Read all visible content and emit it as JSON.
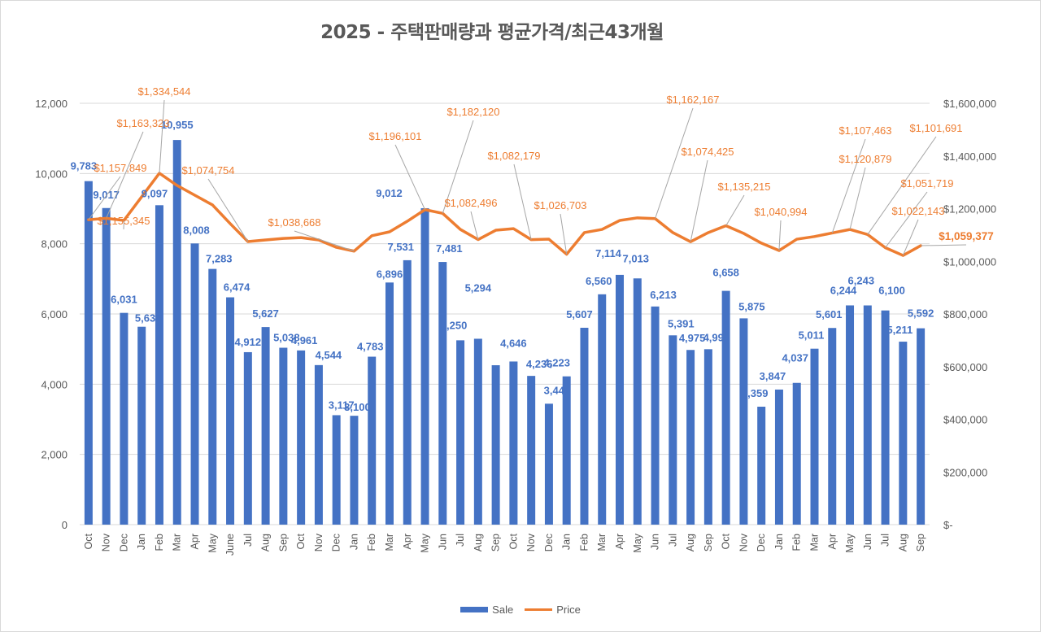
{
  "chart_data": {
    "type": "bar+line",
    "title": "2025 - 주택판매량과 평균가격/최근43개월",
    "xlabel": "",
    "ylabel_left": "",
    "ylabel_right": "",
    "ylim_left": [
      0,
      12000
    ],
    "ylim_right": [
      0,
      1600000
    ],
    "yticks_left": [
      "0",
      "2,000",
      "4,000",
      "6,000",
      "8,000",
      "10,000",
      "12,000"
    ],
    "yticks_right": [
      "$-",
      "$200,000",
      "$400,000",
      "$600,000",
      "$800,000",
      "$1,000,000",
      "$1,200,000",
      "$1,400,000",
      "$1,600,000"
    ],
    "grid": true,
    "legend_position": "bottom",
    "categories": [
      "Oct",
      "Nov",
      "Dec",
      "Jan",
      "Feb",
      "Mar",
      "Apr",
      "May",
      "June",
      "Jul",
      "Aug",
      "Sep",
      "Oct",
      "Nov",
      "Dec",
      "Jan",
      "Feb",
      "Mar",
      "Apr",
      "May",
      "Jun",
      "Jul",
      "Aug",
      "Sep",
      "Oct",
      "Nov",
      "Dec",
      "Jan",
      "Feb",
      "Mar",
      "Apr",
      "May",
      "Jun",
      "Jul",
      "Aug",
      "Sep",
      "Oct",
      "Nov",
      "Dec",
      "Jan",
      "Feb",
      "Mar",
      "Apr",
      "May",
      "Jun",
      "Jul",
      "Aug",
      "Sep"
    ],
    "series": [
      {
        "name": "Sale",
        "type": "bar",
        "axis": "left",
        "color": "#4472c4",
        "values": [
          9783,
          9017,
          6031,
          5636,
          9097,
          10955,
          8008,
          7283,
          6474,
          4912,
          5627,
          5038,
          4961,
          4544,
          3117,
          3100,
          4783,
          6896,
          7531,
          9012,
          7481,
          5250,
          5294,
          4540,
          4646,
          4236,
          3444,
          4223,
          5607,
          6560,
          7114,
          7013,
          6213,
          5391,
          4975,
          4996,
          6658,
          5875,
          3359,
          3847,
          4037,
          5011,
          5601,
          6244,
          6243,
          6100,
          5211,
          5592
        ],
        "labels": [
          "9,783",
          "9,017",
          "6,031",
          "5,636",
          "9,097",
          "10,955",
          "8,008",
          "7,283",
          "6,474",
          "4,912",
          "5,627",
          "5,038",
          "4,961",
          "4,544",
          "3,117",
          "3,100",
          "4,783",
          "6,896",
          "7,531",
          "9,012",
          "7,481",
          "5,250",
          "5,294",
          "",
          "4,646",
          "4,236",
          "3,444",
          "4,223",
          "5,607",
          "6,560",
          "7,114",
          "7,013",
          "6,213",
          "5,391",
          "4,975",
          "4,996",
          "6,658",
          "5,875",
          "3,359",
          "3,847",
          "4,037",
          "5,011",
          "5,601",
          "6,244",
          "6,243",
          "6,100",
          "5,211",
          "5,592"
        ]
      },
      {
        "name": "Price",
        "type": "line",
        "axis": "right",
        "color": "#ed7d31",
        "values": [
          1157849,
          1163323,
          1155345,
          1245000,
          1334544,
          1288000,
          1251000,
          1214000,
          1143000,
          1074754,
          1081000,
          1087000,
          1090000,
          1081000,
          1053000,
          1038668,
          1097000,
          1112000,
          1152000,
          1196101,
          1182120,
          1121000,
          1082496,
          1118000,
          1124000,
          1082179,
          1084000,
          1026703,
          1109000,
          1121000,
          1155000,
          1165000,
          1162167,
          1109000,
          1074425,
          1109000,
          1135215,
          1106000,
          1069000,
          1040994,
          1084000,
          1094000,
          1107463,
          1120879,
          1101691,
          1051719,
          1022143,
          1059377
        ],
        "labels": [
          {
            "index": 0,
            "text": "$1,157,849"
          },
          {
            "index": 1,
            "text": "$1,163,323"
          },
          {
            "index": 2,
            "text": "$1,155,345"
          },
          {
            "index": 4,
            "text": "$1,334,544"
          },
          {
            "index": 9,
            "text": "$1,074,754"
          },
          {
            "index": 15,
            "text": "$1,038,668"
          },
          {
            "index": 19,
            "text": "$1,196,101"
          },
          {
            "index": 20,
            "text": "$1,182,120"
          },
          {
            "index": 22,
            "text": "$1,082,496"
          },
          {
            "index": 25,
            "text": "$1,082,179"
          },
          {
            "index": 27,
            "text": "$1,026,703"
          },
          {
            "index": 32,
            "text": "$1,162,167"
          },
          {
            "index": 34,
            "text": "$1,074,425"
          },
          {
            "index": 36,
            "text": "$1,135,215"
          },
          {
            "index": 39,
            "text": "$1,040,994"
          },
          {
            "index": 42,
            "text": "$1,107,463"
          },
          {
            "index": 43,
            "text": "$1,120,879"
          },
          {
            "index": 44,
            "text": "$1,101,691"
          },
          {
            "index": 45,
            "text": "$1,051,719"
          },
          {
            "index": 46,
            "text": "$1,022,143"
          },
          {
            "index": 47,
            "text": "$1,059,377"
          }
        ]
      }
    ]
  },
  "legend": {
    "sale_label": "Sale",
    "price_label": "Price"
  }
}
